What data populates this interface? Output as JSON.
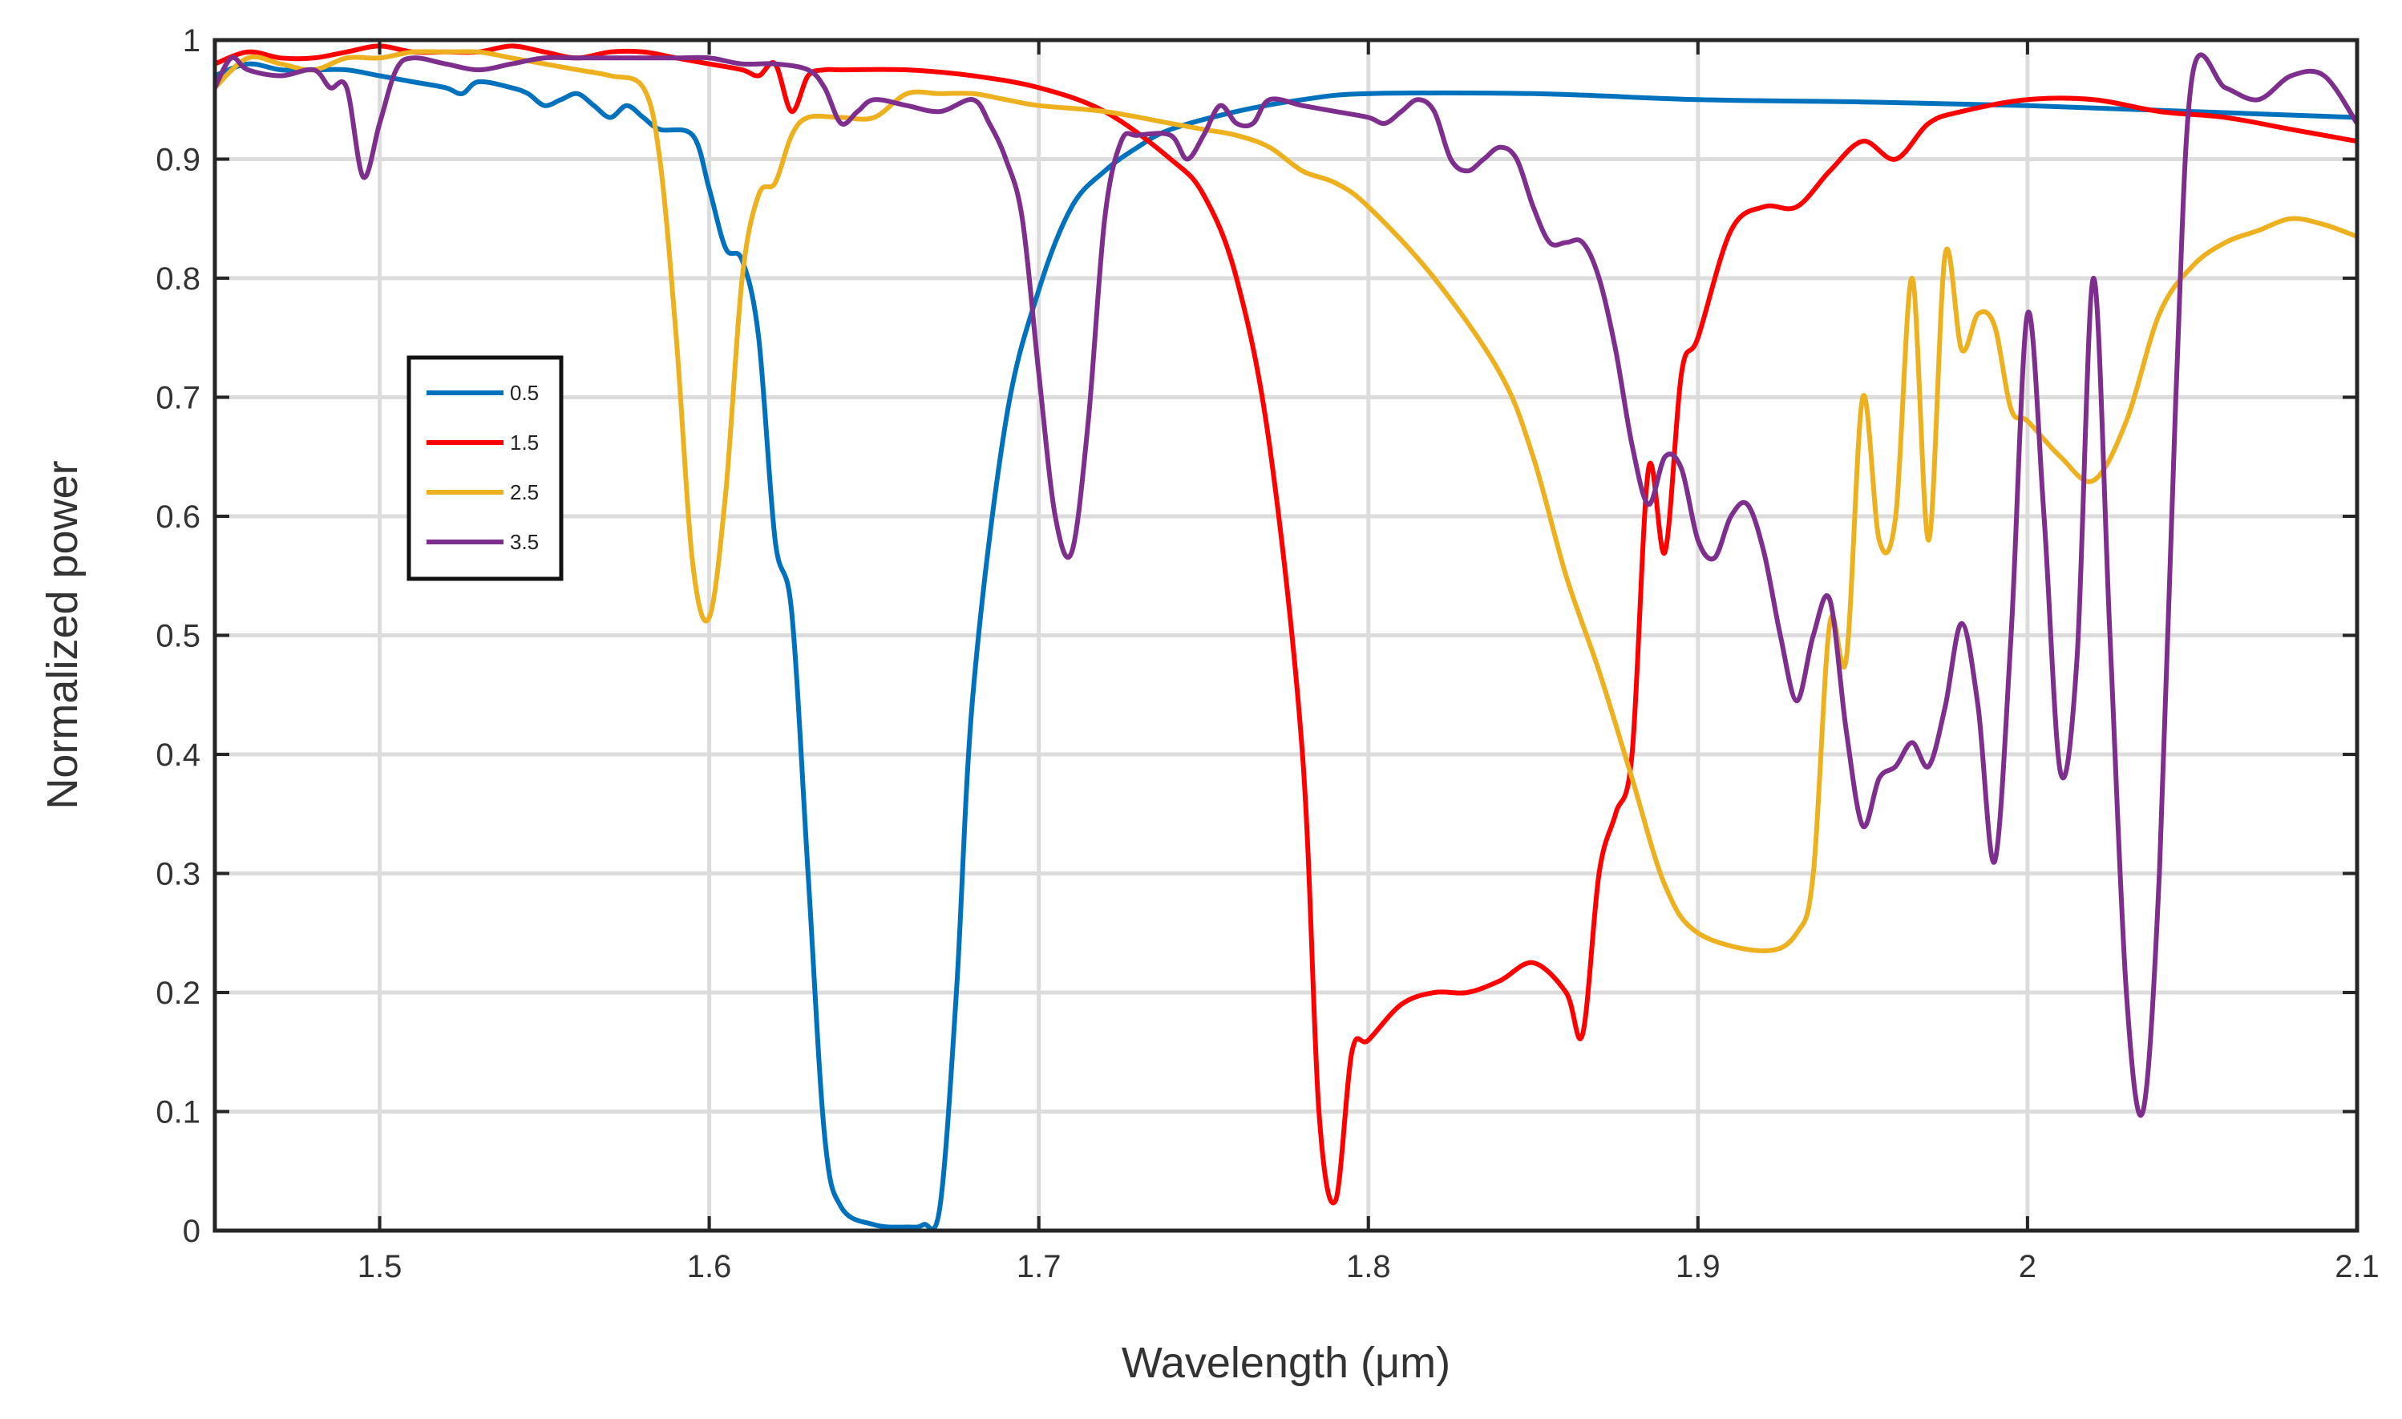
{
  "chart_data": {
    "type": "line",
    "title": "",
    "xlabel": "Wavelength (μm)",
    "ylabel": "Normalized power",
    "xlim": [
      1.45,
      2.1
    ],
    "ylim": [
      0,
      1
    ],
    "grid": true,
    "legend_position": "left",
    "x_ticks": [
      {
        "value": 1.5,
        "label": "1.5"
      },
      {
        "value": 1.6,
        "label": "1.6"
      },
      {
        "value": 1.7,
        "label": "1.7"
      },
      {
        "value": 1.8,
        "label": "1.8"
      },
      {
        "value": 1.9,
        "label": "1.9"
      },
      {
        "value": 2.0,
        "label": "2"
      },
      {
        "value": 2.1,
        "label": "2.1"
      }
    ],
    "y_ticks": [
      {
        "value": 0,
        "label": "0"
      },
      {
        "value": 0.1,
        "label": "0.1"
      },
      {
        "value": 0.2,
        "label": "0.2"
      },
      {
        "value": 0.3,
        "label": "0.3"
      },
      {
        "value": 0.4,
        "label": "0.4"
      },
      {
        "value": 0.5,
        "label": "0.5"
      },
      {
        "value": 0.6,
        "label": "0.6"
      },
      {
        "value": 0.7,
        "label": "0.7"
      },
      {
        "value": 0.8,
        "label": "0.8"
      },
      {
        "value": 0.9,
        "label": "0.9"
      },
      {
        "value": 1.0,
        "label": "1"
      }
    ],
    "series": [
      {
        "name": "0.5",
        "color": "#0072BD",
        "points": [
          [
            1.45,
            0.97
          ],
          [
            1.46,
            0.98
          ],
          [
            1.47,
            0.975
          ],
          [
            1.48,
            0.975
          ],
          [
            1.49,
            0.975
          ],
          [
            1.5,
            0.97
          ],
          [
            1.51,
            0.965
          ],
          [
            1.52,
            0.96
          ],
          [
            1.525,
            0.955
          ],
          [
            1.53,
            0.965
          ],
          [
            1.54,
            0.96
          ],
          [
            1.545,
            0.955
          ],
          [
            1.55,
            0.945
          ],
          [
            1.555,
            0.95
          ],
          [
            1.56,
            0.955
          ],
          [
            1.565,
            0.945
          ],
          [
            1.57,
            0.935
          ],
          [
            1.575,
            0.945
          ],
          [
            1.58,
            0.935
          ],
          [
            1.585,
            0.925
          ],
          [
            1.595,
            0.92
          ],
          [
            1.6,
            0.875
          ],
          [
            1.605,
            0.825
          ],
          [
            1.61,
            0.815
          ],
          [
            1.615,
            0.75
          ],
          [
            1.62,
            0.58
          ],
          [
            1.625,
            0.52
          ],
          [
            1.63,
            0.3
          ],
          [
            1.635,
            0.08
          ],
          [
            1.64,
            0.02
          ],
          [
            1.65,
            0.005
          ],
          [
            1.66,
            0.003
          ],
          [
            1.665,
            0.005
          ],
          [
            1.67,
            0.02
          ],
          [
            1.675,
            0.2
          ],
          [
            1.68,
            0.45
          ],
          [
            1.69,
            0.68
          ],
          [
            1.7,
            0.79
          ],
          [
            1.71,
            0.86
          ],
          [
            1.72,
            0.89
          ],
          [
            1.73,
            0.91
          ],
          [
            1.74,
            0.925
          ],
          [
            1.76,
            0.94
          ],
          [
            1.78,
            0.95
          ],
          [
            1.8,
            0.955
          ],
          [
            1.85,
            0.955
          ],
          [
            1.9,
            0.95
          ],
          [
            1.95,
            0.948
          ],
          [
            2.0,
            0.945
          ],
          [
            2.05,
            0.94
          ],
          [
            2.1,
            0.935
          ]
        ]
      },
      {
        "name": "1.5",
        "color": "#FF0000",
        "points": [
          [
            1.45,
            0.98
          ],
          [
            1.46,
            0.99
          ],
          [
            1.47,
            0.985
          ],
          [
            1.48,
            0.985
          ],
          [
            1.49,
            0.99
          ],
          [
            1.5,
            0.995
          ],
          [
            1.51,
            0.99
          ],
          [
            1.52,
            0.99
          ],
          [
            1.53,
            0.99
          ],
          [
            1.54,
            0.995
          ],
          [
            1.55,
            0.99
          ],
          [
            1.56,
            0.985
          ],
          [
            1.57,
            0.99
          ],
          [
            1.58,
            0.99
          ],
          [
            1.59,
            0.985
          ],
          [
            1.6,
            0.98
          ],
          [
            1.61,
            0.975
          ],
          [
            1.615,
            0.97
          ],
          [
            1.62,
            0.98
          ],
          [
            1.625,
            0.94
          ],
          [
            1.63,
            0.97
          ],
          [
            1.635,
            0.975
          ],
          [
            1.64,
            0.975
          ],
          [
            1.66,
            0.975
          ],
          [
            1.68,
            0.97
          ],
          [
            1.7,
            0.96
          ],
          [
            1.72,
            0.94
          ],
          [
            1.74,
            0.9
          ],
          [
            1.75,
            0.87
          ],
          [
            1.76,
            0.8
          ],
          [
            1.77,
            0.66
          ],
          [
            1.78,
            0.4
          ],
          [
            1.785,
            0.1
          ],
          [
            1.79,
            0.025
          ],
          [
            1.795,
            0.15
          ],
          [
            1.8,
            0.16
          ],
          [
            1.81,
            0.19
          ],
          [
            1.82,
            0.2
          ],
          [
            1.83,
            0.2
          ],
          [
            1.84,
            0.21
          ],
          [
            1.85,
            0.225
          ],
          [
            1.86,
            0.2
          ],
          [
            1.865,
            0.165
          ],
          [
            1.87,
            0.3
          ],
          [
            1.875,
            0.35
          ],
          [
            1.88,
            0.4
          ],
          [
            1.885,
            0.64
          ],
          [
            1.89,
            0.57
          ],
          [
            1.895,
            0.72
          ],
          [
            1.9,
            0.75
          ],
          [
            1.91,
            0.84
          ],
          [
            1.92,
            0.86
          ],
          [
            1.93,
            0.86
          ],
          [
            1.94,
            0.89
          ],
          [
            1.95,
            0.915
          ],
          [
            1.96,
            0.9
          ],
          [
            1.97,
            0.93
          ],
          [
            1.98,
            0.94
          ],
          [
            2.0,
            0.95
          ],
          [
            2.02,
            0.95
          ],
          [
            2.04,
            0.94
          ],
          [
            2.06,
            0.935
          ],
          [
            2.08,
            0.925
          ],
          [
            2.1,
            0.915
          ]
        ]
      },
      {
        "name": "2.5",
        "color": "#EDB120",
        "points": [
          [
            1.45,
            0.96
          ],
          [
            1.46,
            0.985
          ],
          [
            1.47,
            0.98
          ],
          [
            1.48,
            0.975
          ],
          [
            1.49,
            0.985
          ],
          [
            1.5,
            0.985
          ],
          [
            1.51,
            0.99
          ],
          [
            1.52,
            0.99
          ],
          [
            1.53,
            0.99
          ],
          [
            1.54,
            0.985
          ],
          [
            1.55,
            0.98
          ],
          [
            1.56,
            0.975
          ],
          [
            1.57,
            0.97
          ],
          [
            1.58,
            0.96
          ],
          [
            1.585,
            0.9
          ],
          [
            1.59,
            0.75
          ],
          [
            1.595,
            0.56
          ],
          [
            1.6,
            0.515
          ],
          [
            1.605,
            0.62
          ],
          [
            1.61,
            0.8
          ],
          [
            1.615,
            0.87
          ],
          [
            1.62,
            0.88
          ],
          [
            1.625,
            0.92
          ],
          [
            1.63,
            0.935
          ],
          [
            1.64,
            0.935
          ],
          [
            1.65,
            0.935
          ],
          [
            1.66,
            0.955
          ],
          [
            1.67,
            0.955
          ],
          [
            1.68,
            0.955
          ],
          [
            1.69,
            0.95
          ],
          [
            1.7,
            0.945
          ],
          [
            1.72,
            0.94
          ],
          [
            1.74,
            0.93
          ],
          [
            1.75,
            0.925
          ],
          [
            1.76,
            0.92
          ],
          [
            1.77,
            0.91
          ],
          [
            1.78,
            0.89
          ],
          [
            1.79,
            0.88
          ],
          [
            1.8,
            0.86
          ],
          [
            1.82,
            0.8
          ],
          [
            1.84,
            0.72
          ],
          [
            1.85,
            0.65
          ],
          [
            1.86,
            0.55
          ],
          [
            1.87,
            0.47
          ],
          [
            1.88,
            0.38
          ],
          [
            1.89,
            0.29
          ],
          [
            1.9,
            0.25
          ],
          [
            1.92,
            0.235
          ],
          [
            1.93,
            0.25
          ],
          [
            1.935,
            0.3
          ],
          [
            1.94,
            0.51
          ],
          [
            1.945,
            0.48
          ],
          [
            1.95,
            0.7
          ],
          [
            1.955,
            0.58
          ],
          [
            1.96,
            0.6
          ],
          [
            1.965,
            0.8
          ],
          [
            1.97,
            0.58
          ],
          [
            1.975,
            0.82
          ],
          [
            1.98,
            0.74
          ],
          [
            1.985,
            0.77
          ],
          [
            1.99,
            0.76
          ],
          [
            1.995,
            0.69
          ],
          [
            2.0,
            0.68
          ],
          [
            2.01,
            0.65
          ],
          [
            2.02,
            0.63
          ],
          [
            2.03,
            0.68
          ],
          [
            2.04,
            0.77
          ],
          [
            2.05,
            0.81
          ],
          [
            2.06,
            0.83
          ],
          [
            2.07,
            0.84
          ],
          [
            2.08,
            0.85
          ],
          [
            2.09,
            0.845
          ],
          [
            2.1,
            0.835
          ]
        ]
      },
      {
        "name": "3.5",
        "color": "#7E2F8E",
        "points": [
          [
            1.45,
            0.96
          ],
          [
            1.455,
            0.985
          ],
          [
            1.46,
            0.975
          ],
          [
            1.47,
            0.97
          ],
          [
            1.48,
            0.975
          ],
          [
            1.485,
            0.96
          ],
          [
            1.49,
            0.96
          ],
          [
            1.495,
            0.885
          ],
          [
            1.5,
            0.93
          ],
          [
            1.505,
            0.975
          ],
          [
            1.51,
            0.985
          ],
          [
            1.52,
            0.98
          ],
          [
            1.53,
            0.975
          ],
          [
            1.54,
            0.98
          ],
          [
            1.55,
            0.985
          ],
          [
            1.56,
            0.985
          ],
          [
            1.57,
            0.985
          ],
          [
            1.58,
            0.985
          ],
          [
            1.59,
            0.985
          ],
          [
            1.6,
            0.985
          ],
          [
            1.61,
            0.98
          ],
          [
            1.62,
            0.98
          ],
          [
            1.63,
            0.975
          ],
          [
            1.635,
            0.96
          ],
          [
            1.64,
            0.93
          ],
          [
            1.645,
            0.94
          ],
          [
            1.65,
            0.95
          ],
          [
            1.66,
            0.945
          ],
          [
            1.67,
            0.94
          ],
          [
            1.68,
            0.95
          ],
          [
            1.685,
            0.93
          ],
          [
            1.69,
            0.9
          ],
          [
            1.695,
            0.85
          ],
          [
            1.7,
            0.72
          ],
          [
            1.705,
            0.6
          ],
          [
            1.71,
            0.57
          ],
          [
            1.715,
            0.68
          ],
          [
            1.72,
            0.85
          ],
          [
            1.725,
            0.915
          ],
          [
            1.73,
            0.92
          ],
          [
            1.74,
            0.92
          ],
          [
            1.745,
            0.9
          ],
          [
            1.75,
            0.92
          ],
          [
            1.755,
            0.945
          ],
          [
            1.76,
            0.93
          ],
          [
            1.765,
            0.93
          ],
          [
            1.77,
            0.95
          ],
          [
            1.78,
            0.945
          ],
          [
            1.79,
            0.94
          ],
          [
            1.8,
            0.935
          ],
          [
            1.805,
            0.93
          ],
          [
            1.81,
            0.94
          ],
          [
            1.815,
            0.95
          ],
          [
            1.82,
            0.94
          ],
          [
            1.825,
            0.9
          ],
          [
            1.83,
            0.89
          ],
          [
            1.835,
            0.9
          ],
          [
            1.84,
            0.91
          ],
          [
            1.845,
            0.9
          ],
          [
            1.85,
            0.86
          ],
          [
            1.855,
            0.83
          ],
          [
            1.86,
            0.83
          ],
          [
            1.865,
            0.83
          ],
          [
            1.87,
            0.8
          ],
          [
            1.875,
            0.74
          ],
          [
            1.88,
            0.66
          ],
          [
            1.885,
            0.61
          ],
          [
            1.89,
            0.65
          ],
          [
            1.895,
            0.64
          ],
          [
            1.9,
            0.58
          ],
          [
            1.905,
            0.565
          ],
          [
            1.91,
            0.6
          ],
          [
            1.915,
            0.61
          ],
          [
            1.92,
            0.57
          ],
          [
            1.925,
            0.5
          ],
          [
            1.93,
            0.445
          ],
          [
            1.935,
            0.5
          ],
          [
            1.94,
            0.53
          ],
          [
            1.945,
            0.42
          ],
          [
            1.95,
            0.34
          ],
          [
            1.955,
            0.38
          ],
          [
            1.96,
            0.39
          ],
          [
            1.965,
            0.41
          ],
          [
            1.97,
            0.39
          ],
          [
            1.975,
            0.44
          ],
          [
            1.98,
            0.51
          ],
          [
            1.985,
            0.44
          ],
          [
            1.99,
            0.31
          ],
          [
            1.995,
            0.5
          ],
          [
            2.0,
            0.77
          ],
          [
            2.005,
            0.6
          ],
          [
            2.01,
            0.385
          ],
          [
            2.015,
            0.48
          ],
          [
            2.02,
            0.8
          ],
          [
            2.025,
            0.5
          ],
          [
            2.03,
            0.2
          ],
          [
            2.035,
            0.1
          ],
          [
            2.04,
            0.3
          ],
          [
            2.045,
            0.7
          ],
          [
            2.05,
            0.97
          ],
          [
            2.06,
            0.96
          ],
          [
            2.07,
            0.95
          ],
          [
            2.08,
            0.97
          ],
          [
            2.09,
            0.97
          ],
          [
            2.1,
            0.93
          ]
        ]
      }
    ]
  }
}
